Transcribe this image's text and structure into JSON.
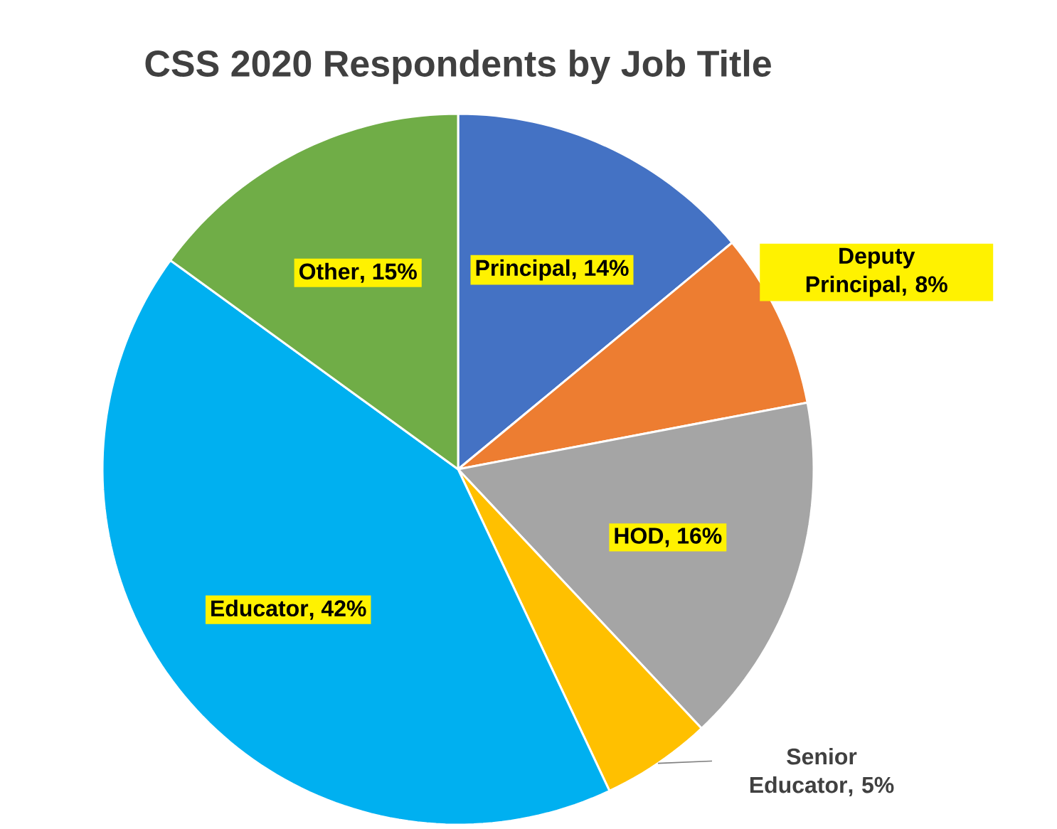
{
  "chart_data": {
    "type": "pie",
    "title": "CSS 2020 Respondents by Job Title",
    "categories": [
      "Principal",
      "Deputy Principal",
      "HOD",
      "Senior Educator",
      "Educator",
      "Other"
    ],
    "values": [
      14,
      8,
      16,
      5,
      42,
      15
    ],
    "colors": [
      "#4472c4",
      "#ed7d31",
      "#a5a5a5",
      "#ffc000",
      "#00b0f0",
      "#70ad47"
    ],
    "value_labels": [
      ", 14%",
      ", 8%",
      ", 16%",
      ", 5%",
      ", 42%",
      ", 15%"
    ]
  }
}
